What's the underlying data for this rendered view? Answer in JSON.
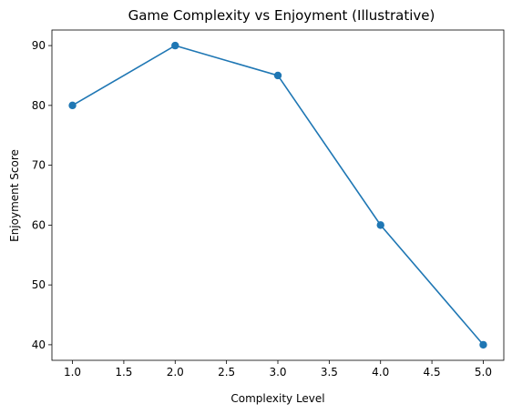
{
  "chart_data": {
    "type": "line",
    "title": "Game Complexity vs Enjoyment (Illustrative)",
    "xlabel": "Complexity Level",
    "ylabel": "Enjoyment Score",
    "x": [
      1,
      2,
      3,
      4,
      5
    ],
    "series": [
      {
        "values": [
          80,
          90,
          85,
          60,
          40
        ]
      }
    ],
    "xlim": [
      0.8,
      5.2
    ],
    "ylim": [
      37.4,
      92.6
    ],
    "xticks": [
      "1.0",
      "1.5",
      "2.0",
      "2.5",
      "3.0",
      "3.5",
      "4.0",
      "4.5",
      "5.0"
    ],
    "yticks": [
      "40",
      "50",
      "60",
      "70",
      "80",
      "90"
    ],
    "grid": false,
    "markers": true,
    "line_color": "#1f77b4"
  }
}
